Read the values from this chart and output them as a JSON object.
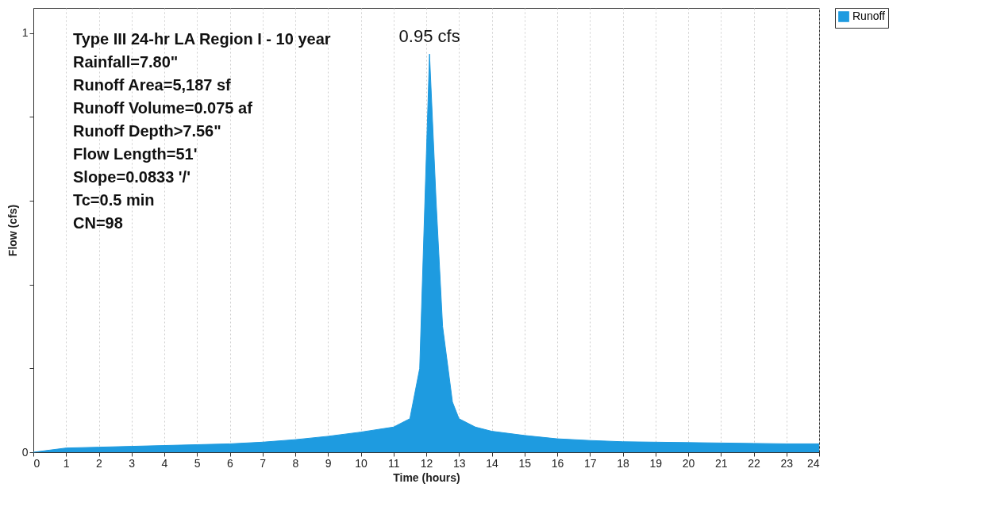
{
  "chart_data": {
    "type": "area",
    "xlabel": "Time (hours)",
    "ylabel": "Flow (cfs)",
    "x": [
      0,
      0.5,
      1,
      2,
      3,
      4,
      5,
      6,
      7,
      8,
      9,
      10,
      11,
      11.5,
      11.8,
      12,
      12.1,
      12.3,
      12.5,
      12.8,
      13,
      13.5,
      14,
      15,
      16,
      17,
      18,
      19,
      20,
      21,
      22,
      23,
      24
    ],
    "series": [
      {
        "name": "Runoff",
        "color": "#1e9be0",
        "values": [
          0,
          0.005,
          0.01,
          0.012,
          0.014,
          0.016,
          0.018,
          0.02,
          0.024,
          0.03,
          0.038,
          0.048,
          0.06,
          0.08,
          0.2,
          0.7,
          0.95,
          0.6,
          0.3,
          0.12,
          0.08,
          0.06,
          0.05,
          0.04,
          0.032,
          0.028,
          0.025,
          0.024,
          0.023,
          0.022,
          0.021,
          0.02,
          0.02
        ]
      }
    ],
    "xlim": [
      0,
      24
    ],
    "xticks": [
      0,
      1,
      2,
      3,
      4,
      5,
      6,
      7,
      8,
      9,
      10,
      11,
      12,
      13,
      14,
      15,
      16,
      17,
      18,
      19,
      20,
      21,
      22,
      23,
      24
    ],
    "ylim": [
      0,
      1.06
    ],
    "yticks": [
      0,
      {
        "value": 0.2,
        "label": null
      },
      {
        "value": 0.4,
        "label": null
      },
      {
        "value": 0.6,
        "label": null
      },
      {
        "value": 0.8,
        "label": null
      },
      1
    ],
    "grid": "x",
    "legend": "top right",
    "annotations": [
      {
        "text": "0.95 cfs",
        "x": 12.1,
        "y": 0.95
      },
      "Type III 24-hr LA Region I - 10 year",
      "Rainfall=7.80\"",
      "Runoff Area=5,187 sf",
      "Runoff Volume=0.075 af",
      "Runoff Depth>7.56\"",
      "Flow Length=51'",
      "Slope=0.0833 '/'",
      "Tc=0.5 min",
      "CN=98"
    ]
  }
}
